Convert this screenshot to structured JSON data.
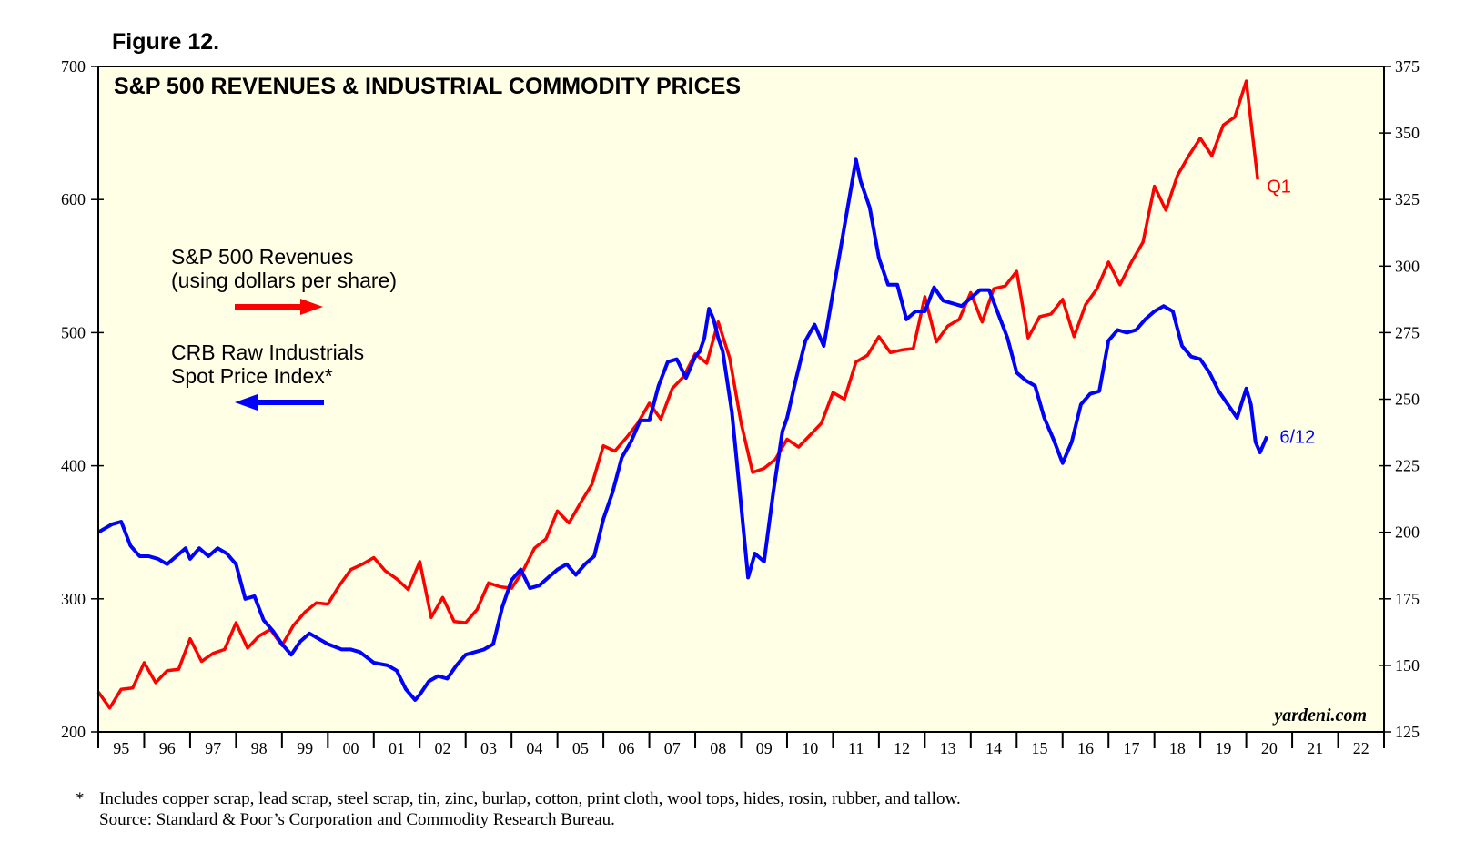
{
  "figure_label": "Figure 12.",
  "watermark": "yardeni.com",
  "footnote": {
    "marker": "*",
    "line1": "Includes copper scrap, lead scrap, steel scrap, tin, zinc, burlap, cotton, print cloth, wool tops, hides, rosin, rubber, and tallow.",
    "line2": "Source: Standard & Poor’s Corporation and Commodity Research Bureau."
  },
  "colors": {
    "background": "#ffffe6",
    "revenues": "#ff0000",
    "crb": "#0000ff"
  },
  "chart_data": {
    "type": "line",
    "title": "S&P 500 REVENUES & INDUSTRIAL COMMODITY PRICES",
    "x_axis": {
      "range": [
        1995,
        2023
      ],
      "tick_labels": [
        "95",
        "96",
        "97",
        "98",
        "99",
        "00",
        "01",
        "02",
        "03",
        "04",
        "05",
        "06",
        "07",
        "08",
        "09",
        "10",
        "11",
        "12",
        "13",
        "14",
        "15",
        "16",
        "17",
        "18",
        "19",
        "20",
        "21",
        "22"
      ]
    },
    "y_left": {
      "range": [
        200,
        700
      ],
      "ticks": [
        200,
        300,
        400,
        500,
        600,
        700
      ]
    },
    "y_right": {
      "range": [
        125,
        375
      ],
      "ticks": [
        125,
        150,
        175,
        200,
        225,
        250,
        275,
        300,
        325,
        350,
        375
      ]
    },
    "legend": [
      {
        "line1": "S&P 500 Revenues",
        "line2": "(using dollars per share)",
        "arrow": "right"
      },
      {
        "line1": "CRB Raw Industrials",
        "line2": "Spot Price Index*",
        "arrow": "left"
      }
    ],
    "series": [
      {
        "name": "S&P 500 Revenues",
        "axis": "left",
        "end_label": "Q1",
        "points": [
          [
            1995.0,
            230
          ],
          [
            1995.25,
            218
          ],
          [
            1995.5,
            232
          ],
          [
            1995.75,
            233
          ],
          [
            1996.0,
            252
          ],
          [
            1996.25,
            237
          ],
          [
            1996.5,
            246
          ],
          [
            1996.75,
            247
          ],
          [
            1997.0,
            270
          ],
          [
            1997.25,
            253
          ],
          [
            1997.5,
            259
          ],
          [
            1997.75,
            262
          ],
          [
            1998.0,
            282
          ],
          [
            1998.25,
            263
          ],
          [
            1998.5,
            272
          ],
          [
            1998.75,
            277
          ],
          [
            1999.0,
            265
          ],
          [
            1999.25,
            280
          ],
          [
            1999.5,
            290
          ],
          [
            1999.75,
            297
          ],
          [
            2000.0,
            296
          ],
          [
            2000.25,
            310
          ],
          [
            2000.5,
            322
          ],
          [
            2000.75,
            326
          ],
          [
            2001.0,
            331
          ],
          [
            2001.25,
            321
          ],
          [
            2001.5,
            315
          ],
          [
            2001.75,
            307
          ],
          [
            2002.0,
            328
          ],
          [
            2002.25,
            286
          ],
          [
            2002.5,
            301
          ],
          [
            2002.75,
            283
          ],
          [
            2003.0,
            282
          ],
          [
            2003.25,
            292
          ],
          [
            2003.5,
            312
          ],
          [
            2003.75,
            309
          ],
          [
            2004.0,
            308
          ],
          [
            2004.25,
            321
          ],
          [
            2004.5,
            338
          ],
          [
            2004.75,
            345
          ],
          [
            2005.0,
            366
          ],
          [
            2005.25,
            357
          ],
          [
            2005.5,
            372
          ],
          [
            2005.75,
            386
          ],
          [
            2006.0,
            415
          ],
          [
            2006.25,
            411
          ],
          [
            2006.5,
            421
          ],
          [
            2006.75,
            432
          ],
          [
            2007.0,
            447
          ],
          [
            2007.25,
            435
          ],
          [
            2007.5,
            458
          ],
          [
            2007.75,
            467
          ],
          [
            2008.0,
            484
          ],
          [
            2008.25,
            477
          ],
          [
            2008.5,
            508
          ],
          [
            2008.75,
            481
          ],
          [
            2009.0,
            432
          ],
          [
            2009.25,
            395
          ],
          [
            2009.5,
            398
          ],
          [
            2009.75,
            405
          ],
          [
            2010.0,
            420
          ],
          [
            2010.25,
            414
          ],
          [
            2010.5,
            423
          ],
          [
            2010.75,
            432
          ],
          [
            2011.0,
            455
          ],
          [
            2011.25,
            450
          ],
          [
            2011.5,
            478
          ],
          [
            2011.75,
            483
          ],
          [
            2012.0,
            497
          ],
          [
            2012.25,
            485
          ],
          [
            2012.5,
            487
          ],
          [
            2012.75,
            488
          ],
          [
            2013.0,
            527
          ],
          [
            2013.25,
            493
          ],
          [
            2013.5,
            505
          ],
          [
            2013.75,
            510
          ],
          [
            2014.0,
            530
          ],
          [
            2014.25,
            508
          ],
          [
            2014.5,
            533
          ],
          [
            2014.75,
            535
          ],
          [
            2015.0,
            546
          ],
          [
            2015.25,
            496
          ],
          [
            2015.5,
            512
          ],
          [
            2015.75,
            514
          ],
          [
            2016.0,
            525
          ],
          [
            2016.25,
            497
          ],
          [
            2016.5,
            521
          ],
          [
            2016.75,
            533
          ],
          [
            2017.0,
            553
          ],
          [
            2017.25,
            536
          ],
          [
            2017.5,
            553
          ],
          [
            2017.75,
            568
          ],
          [
            2018.0,
            610
          ],
          [
            2018.25,
            592
          ],
          [
            2018.5,
            618
          ],
          [
            2018.75,
            633
          ],
          [
            2019.0,
            646
          ],
          [
            2019.25,
            633
          ],
          [
            2019.5,
            656
          ],
          [
            2019.75,
            662
          ],
          [
            2020.0,
            689
          ],
          [
            2020.25,
            615
          ]
        ]
      },
      {
        "name": "CRB Raw Industrials Spot Price Index",
        "axis": "right",
        "end_label": "6/12",
        "points": [
          [
            1995.0,
            200
          ],
          [
            1995.3,
            203
          ],
          [
            1995.5,
            204
          ],
          [
            1995.7,
            195
          ],
          [
            1995.9,
            191
          ],
          [
            1996.1,
            191
          ],
          [
            1996.3,
            190
          ],
          [
            1996.5,
            188
          ],
          [
            1996.7,
            191
          ],
          [
            1996.9,
            194
          ],
          [
            1997.0,
            190
          ],
          [
            1997.2,
            194
          ],
          [
            1997.4,
            191
          ],
          [
            1997.6,
            194
          ],
          [
            1997.8,
            192
          ],
          [
            1998.0,
            188
          ],
          [
            1998.2,
            175
          ],
          [
            1998.4,
            176
          ],
          [
            1998.6,
            167
          ],
          [
            1998.8,
            163
          ],
          [
            1999.0,
            158
          ],
          [
            1999.2,
            154
          ],
          [
            1999.4,
            159
          ],
          [
            1999.6,
            162
          ],
          [
            1999.8,
            160
          ],
          [
            2000.0,
            158
          ],
          [
            2000.3,
            156
          ],
          [
            2000.5,
            156
          ],
          [
            2000.7,
            155
          ],
          [
            2001.0,
            151
          ],
          [
            2001.3,
            150
          ],
          [
            2001.5,
            148
          ],
          [
            2001.7,
            141
          ],
          [
            2001.9,
            137
          ],
          [
            2002.0,
            139
          ],
          [
            2002.2,
            144
          ],
          [
            2002.4,
            146
          ],
          [
            2002.6,
            145
          ],
          [
            2002.8,
            150
          ],
          [
            2003.0,
            154
          ],
          [
            2003.2,
            155
          ],
          [
            2003.4,
            156
          ],
          [
            2003.6,
            158
          ],
          [
            2003.8,
            172
          ],
          [
            2004.0,
            182
          ],
          [
            2004.2,
            186
          ],
          [
            2004.4,
            179
          ],
          [
            2004.6,
            180
          ],
          [
            2004.8,
            183
          ],
          [
            2005.0,
            186
          ],
          [
            2005.2,
            188
          ],
          [
            2005.4,
            184
          ],
          [
            2005.6,
            188
          ],
          [
            2005.8,
            191
          ],
          [
            2006.0,
            205
          ],
          [
            2006.2,
            215
          ],
          [
            2006.4,
            228
          ],
          [
            2006.6,
            234
          ],
          [
            2006.8,
            242
          ],
          [
            2007.0,
            242
          ],
          [
            2007.2,
            255
          ],
          [
            2007.4,
            264
          ],
          [
            2007.6,
            265
          ],
          [
            2007.8,
            258
          ],
          [
            2008.0,
            266
          ],
          [
            2008.1,
            268
          ],
          [
            2008.2,
            273
          ],
          [
            2008.3,
            284
          ],
          [
            2008.4,
            280
          ],
          [
            2008.5,
            273
          ],
          [
            2008.6,
            268
          ],
          [
            2008.8,
            245
          ],
          [
            2009.0,
            210
          ],
          [
            2009.15,
            183
          ],
          [
            2009.3,
            192
          ],
          [
            2009.5,
            189
          ],
          [
            2009.7,
            215
          ],
          [
            2009.9,
            238
          ],
          [
            2010.0,
            243
          ],
          [
            2010.2,
            258
          ],
          [
            2010.4,
            272
          ],
          [
            2010.6,
            278
          ],
          [
            2010.8,
            270
          ],
          [
            2011.0,
            290
          ],
          [
            2011.2,
            310
          ],
          [
            2011.4,
            330
          ],
          [
            2011.5,
            340
          ],
          [
            2011.6,
            332
          ],
          [
            2011.8,
            322
          ],
          [
            2012.0,
            303
          ],
          [
            2012.2,
            293
          ],
          [
            2012.4,
            293
          ],
          [
            2012.6,
            280
          ],
          [
            2012.8,
            283
          ],
          [
            2013.0,
            283
          ],
          [
            2013.2,
            292
          ],
          [
            2013.4,
            287
          ],
          [
            2013.6,
            286
          ],
          [
            2013.8,
            285
          ],
          [
            2014.0,
            288
          ],
          [
            2014.2,
            291
          ],
          [
            2014.4,
            291
          ],
          [
            2014.6,
            282
          ],
          [
            2014.8,
            273
          ],
          [
            2015.0,
            260
          ],
          [
            2015.2,
            257
          ],
          [
            2015.4,
            255
          ],
          [
            2015.6,
            243
          ],
          [
            2015.8,
            235
          ],
          [
            2016.0,
            226
          ],
          [
            2016.2,
            234
          ],
          [
            2016.4,
            248
          ],
          [
            2016.6,
            252
          ],
          [
            2016.8,
            253
          ],
          [
            2017.0,
            272
          ],
          [
            2017.2,
            276
          ],
          [
            2017.4,
            275
          ],
          [
            2017.6,
            276
          ],
          [
            2017.8,
            280
          ],
          [
            2018.0,
            283
          ],
          [
            2018.2,
            285
          ],
          [
            2018.4,
            283
          ],
          [
            2018.6,
            270
          ],
          [
            2018.8,
            266
          ],
          [
            2019.0,
            265
          ],
          [
            2019.2,
            260
          ],
          [
            2019.4,
            253
          ],
          [
            2019.6,
            248
          ],
          [
            2019.8,
            243
          ],
          [
            2020.0,
            254
          ],
          [
            2020.1,
            248
          ],
          [
            2020.2,
            234
          ],
          [
            2020.3,
            230
          ],
          [
            2020.45,
            236
          ]
        ]
      }
    ]
  }
}
